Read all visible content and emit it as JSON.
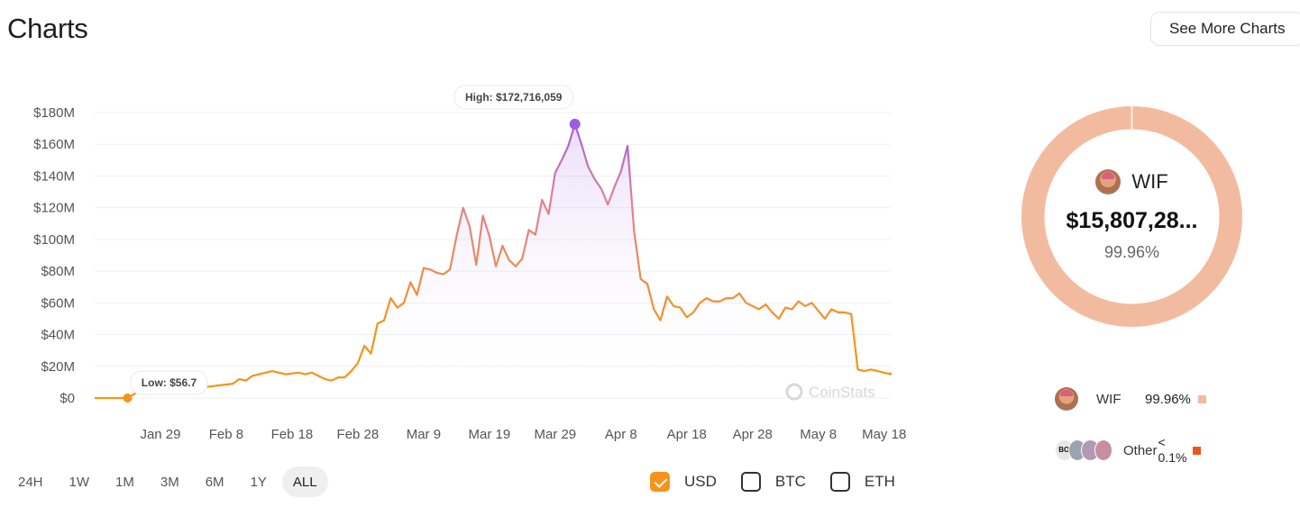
{
  "header": {
    "title": "Charts",
    "see_more_label": "See More Charts"
  },
  "chart_data": {
    "type": "area",
    "ylim": [
      0,
      180000000
    ],
    "yticks": [
      {
        "value": 180000000,
        "label": "$180M"
      },
      {
        "value": 160000000,
        "label": "$160M"
      },
      {
        "value": 140000000,
        "label": "$140M"
      },
      {
        "value": 120000000,
        "label": "$120M"
      },
      {
        "value": 100000000,
        "label": "$100M"
      },
      {
        "value": 80000000,
        "label": "$80M"
      },
      {
        "value": 60000000,
        "label": "$60M"
      },
      {
        "value": 40000000,
        "label": "$40M"
      },
      {
        "value": 20000000,
        "label": "$20M"
      },
      {
        "value": 0,
        "label": "$0"
      }
    ],
    "xlim": [
      "2024-01-19",
      "2024-05-19"
    ],
    "xticks": [
      {
        "date": "2024-01-29",
        "label": "Jan 29"
      },
      {
        "date": "2024-02-08",
        "label": "Feb 8"
      },
      {
        "date": "2024-02-18",
        "label": "Feb 18"
      },
      {
        "date": "2024-02-28",
        "label": "Feb 28"
      },
      {
        "date": "2024-03-09",
        "label": "Mar 9"
      },
      {
        "date": "2024-03-19",
        "label": "Mar 19"
      },
      {
        "date": "2024-03-29",
        "label": "Mar 29"
      },
      {
        "date": "2024-04-08",
        "label": "Apr 8"
      },
      {
        "date": "2024-04-18",
        "label": "Apr 18"
      },
      {
        "date": "2024-04-28",
        "label": "Apr 28"
      },
      {
        "date": "2024-05-08",
        "label": "May 8"
      },
      {
        "date": "2024-05-18",
        "label": "May 18"
      }
    ],
    "series": [
      {
        "colors": {
          "low": "#f7931a",
          "high": "#9b5de5"
        },
        "points": [
          [
            "2024-01-19",
            0
          ],
          [
            "2024-01-23",
            0
          ],
          [
            "2024-01-24",
            0
          ],
          [
            "2024-01-26",
            5000000
          ],
          [
            "2024-01-28",
            8000000
          ],
          [
            "2024-01-30",
            9000000
          ],
          [
            "2024-02-01",
            8000000
          ],
          [
            "2024-02-03",
            9000000
          ],
          [
            "2024-02-05",
            7000000
          ],
          [
            "2024-02-07",
            8000000
          ],
          [
            "2024-02-09",
            9000000
          ],
          [
            "2024-02-10",
            12000000
          ],
          [
            "2024-02-11",
            11000000
          ],
          [
            "2024-02-12",
            14000000
          ],
          [
            "2024-02-13",
            15000000
          ],
          [
            "2024-02-15",
            17000000
          ],
          [
            "2024-02-17",
            15000000
          ],
          [
            "2024-02-19",
            16000000
          ],
          [
            "2024-02-20",
            15000000
          ],
          [
            "2024-02-21",
            16000000
          ],
          [
            "2024-02-23",
            12000000
          ],
          [
            "2024-02-24",
            11000000
          ],
          [
            "2024-02-25",
            13000000
          ],
          [
            "2024-02-26",
            13000000
          ],
          [
            "2024-02-27",
            17000000
          ],
          [
            "2024-02-28",
            22000000
          ],
          [
            "2024-02-29",
            33000000
          ],
          [
            "2024-03-01",
            28000000
          ],
          [
            "2024-03-02",
            47000000
          ],
          [
            "2024-03-03",
            49000000
          ],
          [
            "2024-03-04",
            63000000
          ],
          [
            "2024-03-05",
            57000000
          ],
          [
            "2024-03-06",
            60000000
          ],
          [
            "2024-03-07",
            73000000
          ],
          [
            "2024-03-08",
            65000000
          ],
          [
            "2024-03-09",
            82000000
          ],
          [
            "2024-03-10",
            81000000
          ],
          [
            "2024-03-11",
            79000000
          ],
          [
            "2024-03-12",
            78000000
          ],
          [
            "2024-03-13",
            81000000
          ],
          [
            "2024-03-14",
            102000000
          ],
          [
            "2024-03-15",
            120000000
          ],
          [
            "2024-03-16",
            108000000
          ],
          [
            "2024-03-17",
            84000000
          ],
          [
            "2024-03-18",
            115000000
          ],
          [
            "2024-03-19",
            102000000
          ],
          [
            "2024-03-20",
            83000000
          ],
          [
            "2024-03-21",
            96000000
          ],
          [
            "2024-03-22",
            87000000
          ],
          [
            "2024-03-23",
            83000000
          ],
          [
            "2024-03-24",
            88000000
          ],
          [
            "2024-03-25",
            106000000
          ],
          [
            "2024-03-26",
            103000000
          ],
          [
            "2024-03-27",
            125000000
          ],
          [
            "2024-03-28",
            116000000
          ],
          [
            "2024-03-29",
            142000000
          ],
          [
            "2024-03-30",
            150000000
          ],
          [
            "2024-03-31",
            159000000
          ],
          [
            "2024-04-01",
            172716059
          ],
          [
            "2024-04-02",
            160000000
          ],
          [
            "2024-04-03",
            146000000
          ],
          [
            "2024-04-04",
            138000000
          ],
          [
            "2024-04-05",
            132000000
          ],
          [
            "2024-04-06",
            122000000
          ],
          [
            "2024-04-07",
            133000000
          ],
          [
            "2024-04-08",
            143000000
          ],
          [
            "2024-04-09",
            159000000
          ],
          [
            "2024-04-10",
            105000000
          ],
          [
            "2024-04-11",
            75000000
          ],
          [
            "2024-04-12",
            72000000
          ],
          [
            "2024-04-13",
            56000000
          ],
          [
            "2024-04-14",
            49000000
          ],
          [
            "2024-04-15",
            64000000
          ],
          [
            "2024-04-16",
            58000000
          ],
          [
            "2024-04-17",
            57000000
          ],
          [
            "2024-04-18",
            51000000
          ],
          [
            "2024-04-19",
            54000000
          ],
          [
            "2024-04-20",
            60000000
          ],
          [
            "2024-04-21",
            63000000
          ],
          [
            "2024-04-22",
            61000000
          ],
          [
            "2024-04-23",
            61000000
          ],
          [
            "2024-04-24",
            63000000
          ],
          [
            "2024-04-25",
            63000000
          ],
          [
            "2024-04-26",
            66000000
          ],
          [
            "2024-04-27",
            60000000
          ],
          [
            "2024-04-28",
            58000000
          ],
          [
            "2024-04-29",
            56000000
          ],
          [
            "2024-04-30",
            59000000
          ],
          [
            "2024-05-01",
            54000000
          ],
          [
            "2024-05-02",
            50000000
          ],
          [
            "2024-05-03",
            57000000
          ],
          [
            "2024-05-04",
            56000000
          ],
          [
            "2024-05-05",
            61000000
          ],
          [
            "2024-05-06",
            58000000
          ],
          [
            "2024-05-07",
            60000000
          ],
          [
            "2024-05-08",
            55000000
          ],
          [
            "2024-05-09",
            50000000
          ],
          [
            "2024-05-10",
            56000000
          ],
          [
            "2024-05-11",
            54000000
          ],
          [
            "2024-05-12",
            54000000
          ],
          [
            "2024-05-13",
            53000000
          ],
          [
            "2024-05-14",
            18000000
          ],
          [
            "2024-05-15",
            17000000
          ],
          [
            "2024-05-16",
            18000000
          ],
          [
            "2024-05-17",
            17000000
          ],
          [
            "2024-05-18",
            16000000
          ],
          [
            "2024-05-19",
            15000000
          ],
          [
            "2024-05-19",
            16000000
          ]
        ]
      }
    ],
    "annotations": {
      "high": {
        "label": "High: $172,716,059",
        "date": "2024-04-01",
        "value": 172716059
      },
      "low": {
        "label": "Low: $56.7",
        "date": "2024-01-24",
        "value": 56.7
      }
    },
    "watermark": "CoinStats",
    "grid": true
  },
  "ranges": {
    "items": [
      "24H",
      "1W",
      "1M",
      "3M",
      "6M",
      "1Y",
      "ALL"
    ],
    "selected": "ALL"
  },
  "currencies": {
    "items": [
      {
        "label": "USD",
        "checked": true
      },
      {
        "label": "BTC",
        "checked": false
      },
      {
        "label": "ETH",
        "checked": false
      }
    ]
  },
  "allocation": {
    "center_name": "WIF",
    "center_value": "$15,807,28...",
    "center_pct": "99.96%",
    "slices": [
      {
        "name": "WIF",
        "percent": 99.96,
        "color": "#f2bba0"
      },
      {
        "name": "Other",
        "percent": 0.04,
        "color": "#e35a20"
      }
    ],
    "legend": [
      {
        "name": "WIF",
        "pct": "99.96%",
        "color": "#f2bba0"
      },
      {
        "name": "Other",
        "pct_top": "<",
        "pct_bottom": "0.1%",
        "color": "#e35a20",
        "mini_label": "BO"
      }
    ]
  }
}
